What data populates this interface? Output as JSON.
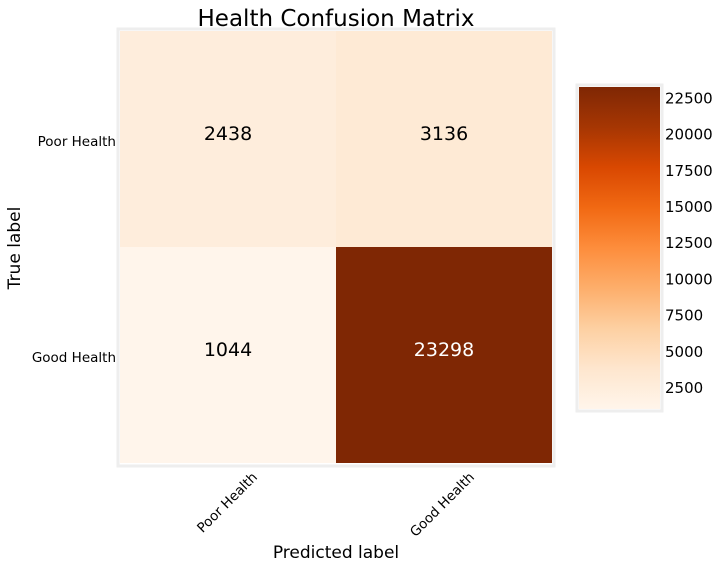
{
  "chart_data": {
    "type": "heatmap",
    "title": "Health Confusion Matrix",
    "xlabel": "Predicted label",
    "ylabel": "True label",
    "x_categories": [
      "Poor Health",
      "Good Health"
    ],
    "y_categories": [
      "Poor Health",
      "Good Health"
    ],
    "values": [
      [
        2438,
        3136
      ],
      [
        1044,
        23298
      ]
    ],
    "colormap": "Oranges",
    "colorbar": {
      "ticks": [
        "22500",
        "20000",
        "17500",
        "15000",
        "12500",
        "10000",
        "7500",
        "5000",
        "2500"
      ],
      "range": [
        1044,
        23298
      ]
    },
    "colors": {
      "low": "#fff5eb",
      "high": "#7f2704",
      "text_dark": "#000000",
      "text_light": "#ffffff"
    }
  }
}
